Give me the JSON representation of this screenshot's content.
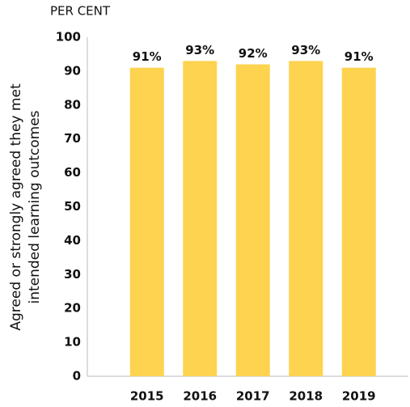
{
  "chart_data": {
    "type": "bar",
    "subtitle": "PER CENT",
    "y_label": [
      "Agreed or strongly agreed they met",
      "intended learning outcomes"
    ],
    "categories": [
      "2015",
      "2016",
      "2017",
      "2018",
      "2019"
    ],
    "values": [
      91,
      93,
      92,
      93,
      91
    ],
    "value_labels": [
      "91%",
      "93%",
      "92%",
      "93%",
      "91%"
    ],
    "color": "#fdd34f",
    "ylim": [
      0,
      100
    ],
    "yticks": [
      0,
      10,
      20,
      30,
      40,
      50,
      60,
      70,
      80,
      90,
      100
    ],
    "grid": false
  }
}
